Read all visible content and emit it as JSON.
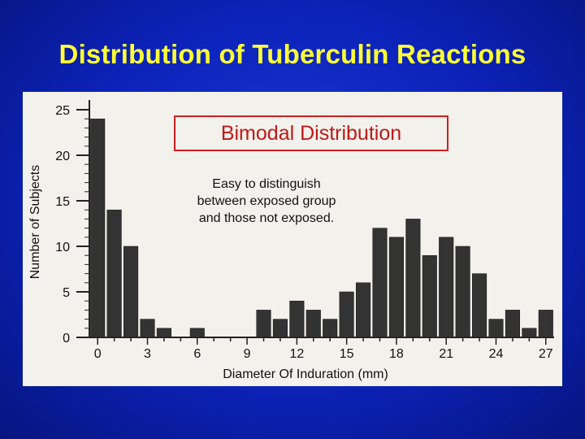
{
  "slide": {
    "title": "Distribution of Tuberculin Reactions",
    "callout": "Bimodal Distribution",
    "note_lines": [
      "Easy to distinguish",
      "between exposed group",
      "and those not exposed."
    ]
  },
  "chart_data": {
    "type": "bar",
    "title": "",
    "xlabel": "Diameter Of Induration (mm)",
    "ylabel": "Number of Subjects",
    "x": [
      0,
      1,
      2,
      3,
      4,
      5,
      6,
      7,
      8,
      9,
      10,
      11,
      12,
      13,
      14,
      15,
      16,
      17,
      18,
      19,
      20,
      21,
      22,
      23,
      24,
      25,
      26,
      27
    ],
    "values": [
      24,
      14,
      10,
      2,
      1,
      0,
      1,
      0,
      0,
      0,
      3,
      2,
      4,
      3,
      2,
      5,
      6,
      12,
      11,
      13,
      9,
      11,
      10,
      7,
      2,
      3,
      1,
      3
    ],
    "xticks": [
      0,
      3,
      6,
      9,
      12,
      15,
      18,
      21,
      24,
      27
    ],
    "yticks": [
      0,
      5,
      10,
      15,
      20,
      25
    ],
    "ylim": [
      0,
      25
    ],
    "bar_color": "#333333",
    "grid": false
  }
}
